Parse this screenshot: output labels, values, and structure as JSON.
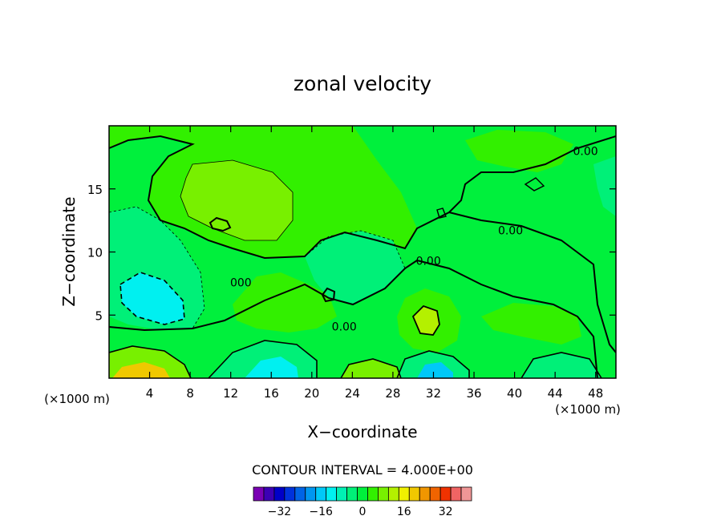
{
  "chart_data": {
    "type": "heatmap",
    "title": "zonal velocity",
    "xlabel": "X−coordinate",
    "ylabel": "Z−coordinate",
    "x_unit": "(×1000 m)",
    "x_unit_right": "(×1000 m)",
    "xlim": [
      0,
      50
    ],
    "ylim": [
      0,
      20
    ],
    "x_ticks": [
      4,
      8,
      12,
      16,
      20,
      24,
      28,
      32,
      36,
      40,
      44,
      48
    ],
    "y_ticks": [
      5,
      10,
      15
    ],
    "contour_interval_text": "CONTOUR INTERVAL = 4.000E+00",
    "contour_labels": [
      {
        "text": "0.00",
        "x": 39.6,
        "y": 11.7
      },
      {
        "text": "0.00",
        "x": 31.5,
        "y": 9.3
      },
      {
        "text": "0.00",
        "x": 23.2,
        "y": 4.1
      },
      {
        "text": "0.00",
        "x": 47.0,
        "y": 18.0
      },
      {
        "text": "000",
        "x": 13.0,
        "y": 7.6
      }
    ],
    "colorbar": {
      "colors": [
        "#7a00b4",
        "#3c00b4",
        "#0000c8",
        "#0032dc",
        "#0064e6",
        "#0096f0",
        "#00c8f8",
        "#00f0f0",
        "#00f0b4",
        "#00f078",
        "#00f03c",
        "#32f000",
        "#78f000",
        "#b4f000",
        "#f0f000",
        "#f0c800",
        "#f09600",
        "#f06400",
        "#f03200",
        "#f06464",
        "#f09696"
      ],
      "tick_labels": [
        "−32",
        "−16",
        "0",
        "16",
        "32"
      ],
      "tick_values": [
        -32,
        -16,
        0,
        16,
        32
      ],
      "min": -42,
      "max": 42
    },
    "field_levels": {
      "background": "#00f03c",
      "regions": [
        {
          "name": "upper-left-positive",
          "value": 4,
          "color": "#32f000"
        },
        {
          "name": "upper-left-core",
          "value": 8,
          "color": "#78f000"
        },
        {
          "name": "left-negative",
          "value": -4,
          "color": "#00f078"
        },
        {
          "name": "left-negative-core",
          "value": -12,
          "color": "#00f0f0"
        },
        {
          "name": "bottom-left-hot",
          "value": 20,
          "color": "#f0c800"
        },
        {
          "name": "bottom-cold-32",
          "value": -20,
          "color": "#00c8f8"
        },
        {
          "name": "center-positive-30",
          "value": 12,
          "color": "#b4f000"
        }
      ]
    }
  }
}
